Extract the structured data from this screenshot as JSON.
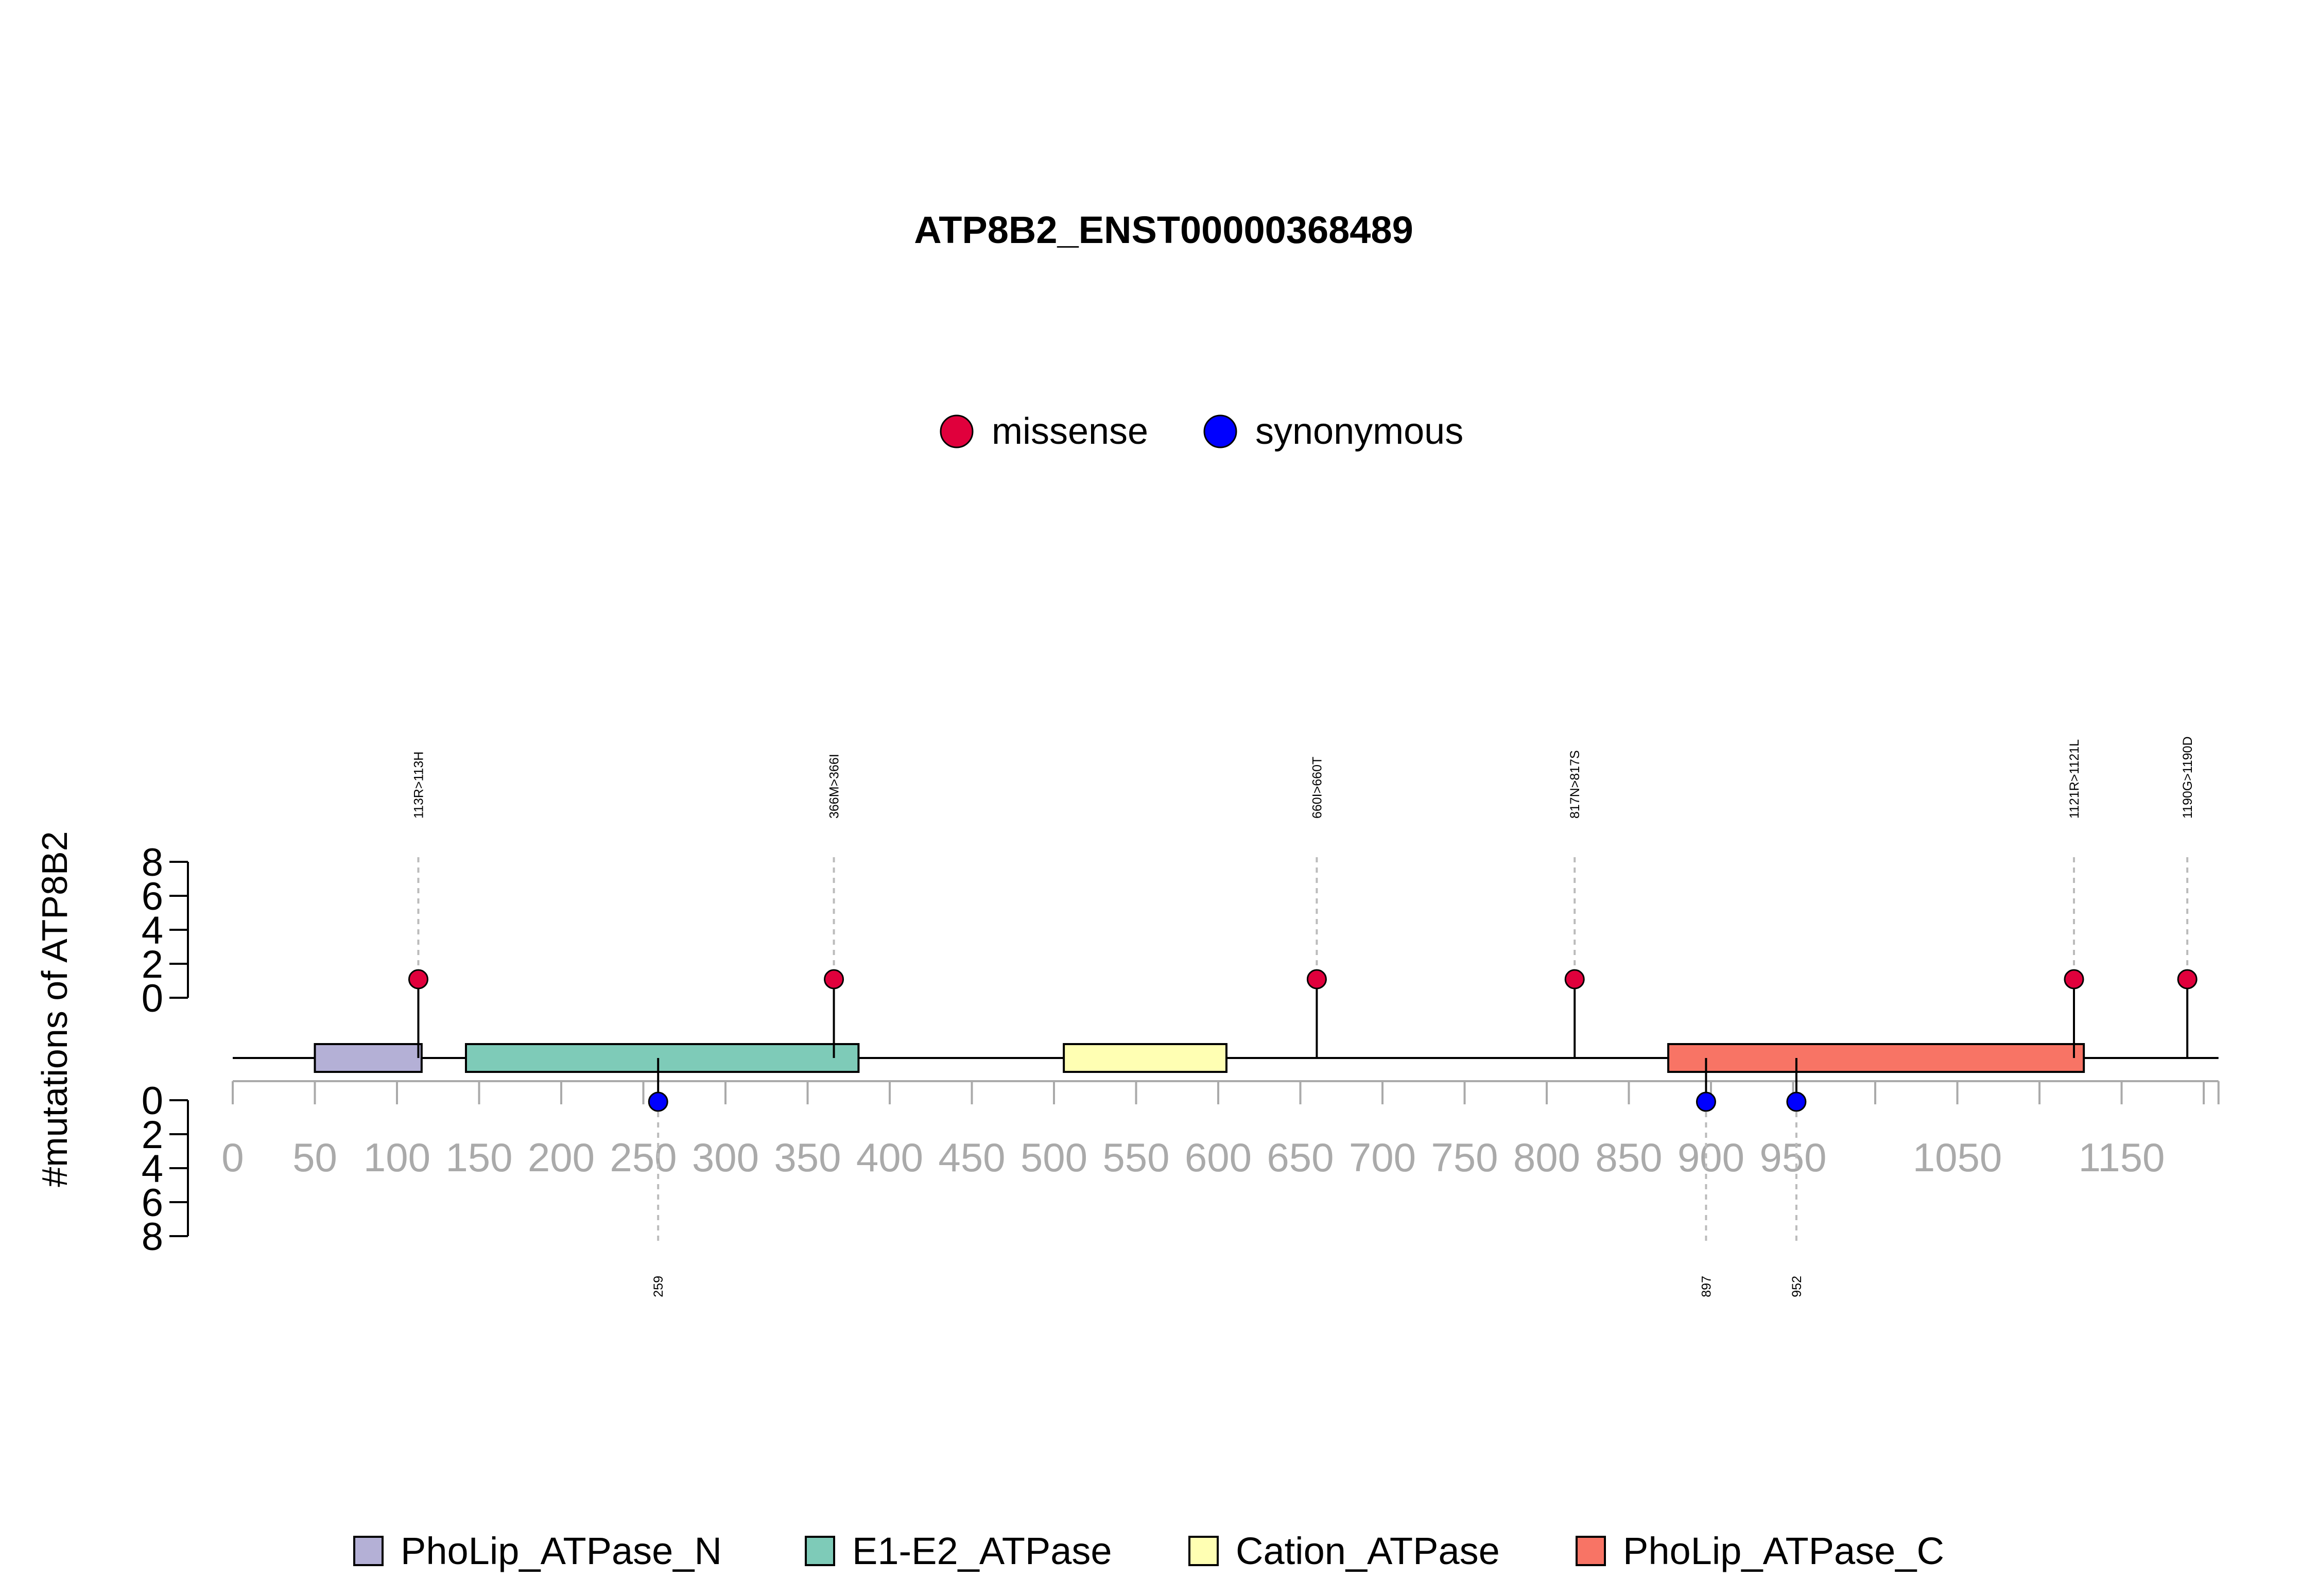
{
  "chart_data": {
    "type": "lollipop",
    "title": "ATP8B2_ENST00000368489",
    "ylabel": "#mutations of ATP8B2",
    "protein_length": 1209,
    "xlim": [
      0,
      1200
    ],
    "x_ticks": [
      0,
      50,
      100,
      150,
      200,
      250,
      300,
      350,
      400,
      450,
      500,
      550,
      600,
      650,
      700,
      750,
      800,
      850,
      900,
      950,
      1050,
      1150
    ],
    "y_ticks_upper": [
      0,
      2,
      4,
      6,
      8
    ],
    "y_ticks_lower": [
      0,
      2,
      4,
      6,
      8
    ],
    "ylim": [
      0,
      8
    ],
    "mutation_legend": [
      {
        "label": "missense",
        "color": "#e0003c"
      },
      {
        "label": "synonymous",
        "color": "#0000ff"
      }
    ],
    "domains": [
      {
        "name": "PhoLip_ATPase_N",
        "start": 50,
        "end": 115,
        "color": "#b4b0d6"
      },
      {
        "name": "E1-E2_ATPase",
        "start": 142,
        "end": 381,
        "color": "#7ecbb8"
      },
      {
        "name": "Cation_ATPase",
        "start": 506,
        "end": 605,
        "color": "#ffffb3"
      },
      {
        "name": "PhoLip_ATPase_C",
        "start": 874,
        "end": 1127,
        "color": "#f87465"
      }
    ],
    "mutations": [
      {
        "position": 113,
        "label": "113R>113H",
        "type": "missense",
        "count": 1,
        "side": "top"
      },
      {
        "position": 366,
        "label": "366M>366I",
        "type": "missense",
        "count": 1,
        "side": "top"
      },
      {
        "position": 660,
        "label": "660I>660T",
        "type": "missense",
        "count": 1,
        "side": "top"
      },
      {
        "position": 817,
        "label": "817N>817S",
        "type": "missense",
        "count": 1,
        "side": "top"
      },
      {
        "position": 1121,
        "label": "1121R>1121L",
        "type": "missense",
        "count": 1,
        "side": "top"
      },
      {
        "position": 1190,
        "label": "1190G>1190D",
        "type": "missense",
        "count": 1,
        "side": "top"
      },
      {
        "position": 259,
        "label": "259",
        "type": "synonymous",
        "count": 1,
        "side": "bottom"
      },
      {
        "position": 897,
        "label": "897",
        "type": "synonymous",
        "count": 1,
        "side": "bottom"
      },
      {
        "position": 952,
        "label": "952",
        "type": "synonymous",
        "count": 1,
        "side": "bottom"
      }
    ]
  }
}
